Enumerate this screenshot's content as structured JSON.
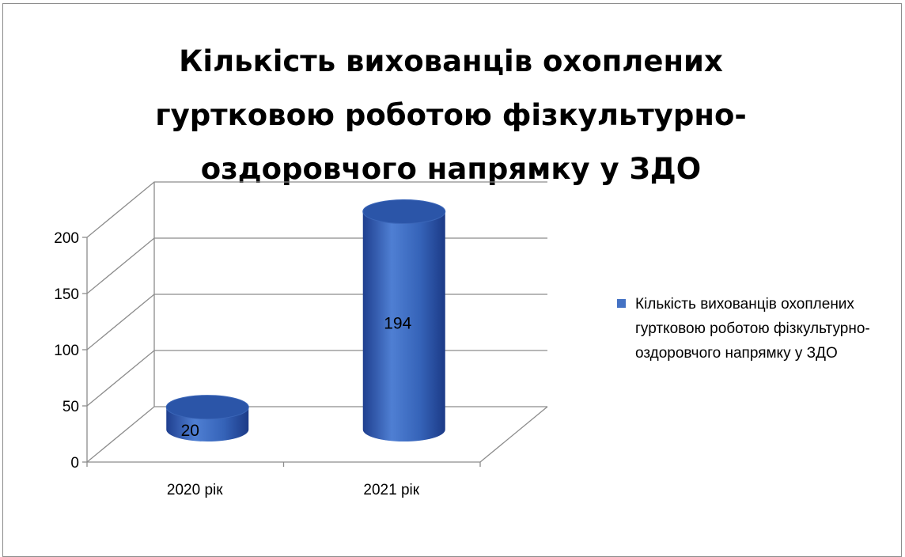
{
  "chart_data": {
    "type": "bar",
    "title": "Кількість вихованців охоплених гуртковою роботою фізкультурно-оздоровчого напрямку у ЗДО",
    "categories": [
      "2020 рік",
      "2021 рік"
    ],
    "series": [
      {
        "name": "Кількість вихованців охоплених гуртковою роботою фізкультурно-оздоровчого напрямку у ЗДО",
        "values": [
          20,
          194
        ],
        "color": "#4472c4"
      }
    ],
    "y_ticks": [
      "0",
      "50",
      "100",
      "150",
      "200"
    ],
    "ylim": [
      0,
      200
    ],
    "grid": true,
    "shape": "3d-cylinder",
    "legend_position": "right",
    "data_labels": [
      "20",
      "194"
    ]
  }
}
